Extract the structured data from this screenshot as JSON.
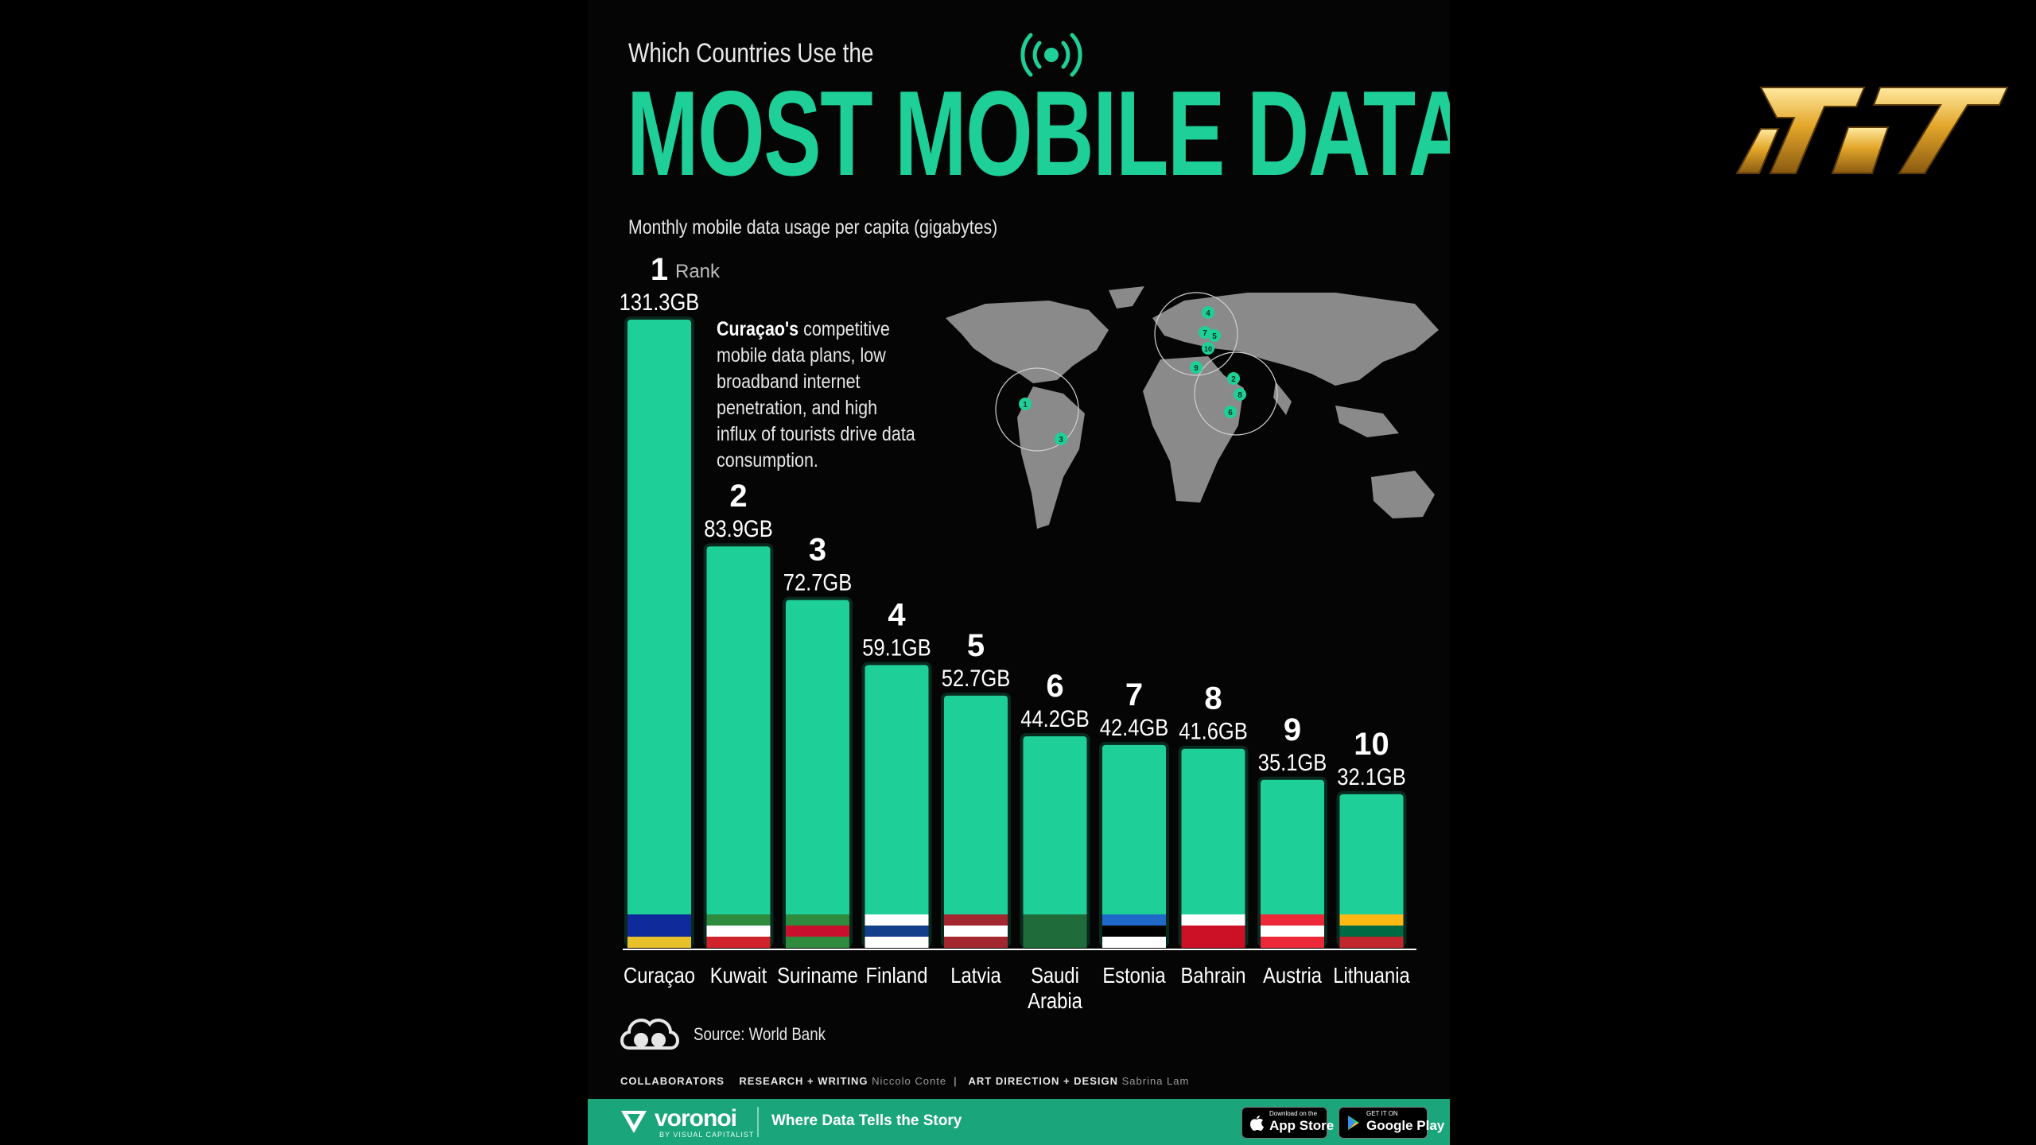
{
  "header": {
    "pretitle": "Which Countries Use the",
    "title": "MOST MOBILE DATA?",
    "subtitle": "Monthly mobile data usage per capita (gigabytes)"
  },
  "rank_word": "Rank",
  "callout": {
    "lead": "Curaçao's",
    "body": " competitive mobile data plans, low broadband internet penetration, and high influx of tourists drive data consumption."
  },
  "map_markers": [
    "1",
    "2",
    "3",
    "4",
    "5",
    "6",
    "7",
    "8",
    "9",
    "10"
  ],
  "chart_data": {
    "type": "bar",
    "categories": [
      "Curaçao",
      "Kuwait",
      "Suriname",
      "Finland",
      "Latvia",
      "Saudi Arabia",
      "Estonia",
      "Bahrain",
      "Austria",
      "Lithuania"
    ],
    "values": [
      131.3,
      83.9,
      72.7,
      59.1,
      52.7,
      44.2,
      42.4,
      41.6,
      35.1,
      32.1
    ],
    "ranks": [
      "1",
      "2",
      "3",
      "4",
      "5",
      "6",
      "7",
      "8",
      "9",
      "10"
    ],
    "value_labels": [
      "131.3GB",
      "83.9GB",
      "72.7GB",
      "59.1GB",
      "52.7GB",
      "44.2GB",
      "42.4GB",
      "41.6GB",
      "35.1GB",
      "32.1GB"
    ],
    "title": "MOST MOBILE DATA?",
    "ylabel": "Monthly mobile data usage per capita (gigabytes)",
    "bar_color": "#1ecf97",
    "grid": false
  },
  "source": "Source: World Bank",
  "collaborators": {
    "label": "COLLABORATORS",
    "research_label": "RESEARCH + WRITING",
    "research_name": "Niccolo Conte",
    "design_label": "ART DIRECTION + DESIGN",
    "design_name": "Sabrina Lam"
  },
  "footer": {
    "brand": "voronoi",
    "brand_sub": "BY VISUAL CAPITALIST",
    "tagline": "Where Data Tells the Story",
    "appstore_small": "Download on the",
    "appstore_big": "App Store",
    "googleplay_small": "GET IT ON",
    "googleplay_big": "Google Play"
  },
  "colors": {
    "accent": "#1ecf97",
    "background": "#050505",
    "footer": "#1aa57a",
    "logo_gold": "#e3a62a"
  },
  "icons": {
    "signal": "broadcast-icon",
    "source": "cloud-binoculars-icon",
    "apple": "apple-icon",
    "play": "play-store-icon"
  }
}
